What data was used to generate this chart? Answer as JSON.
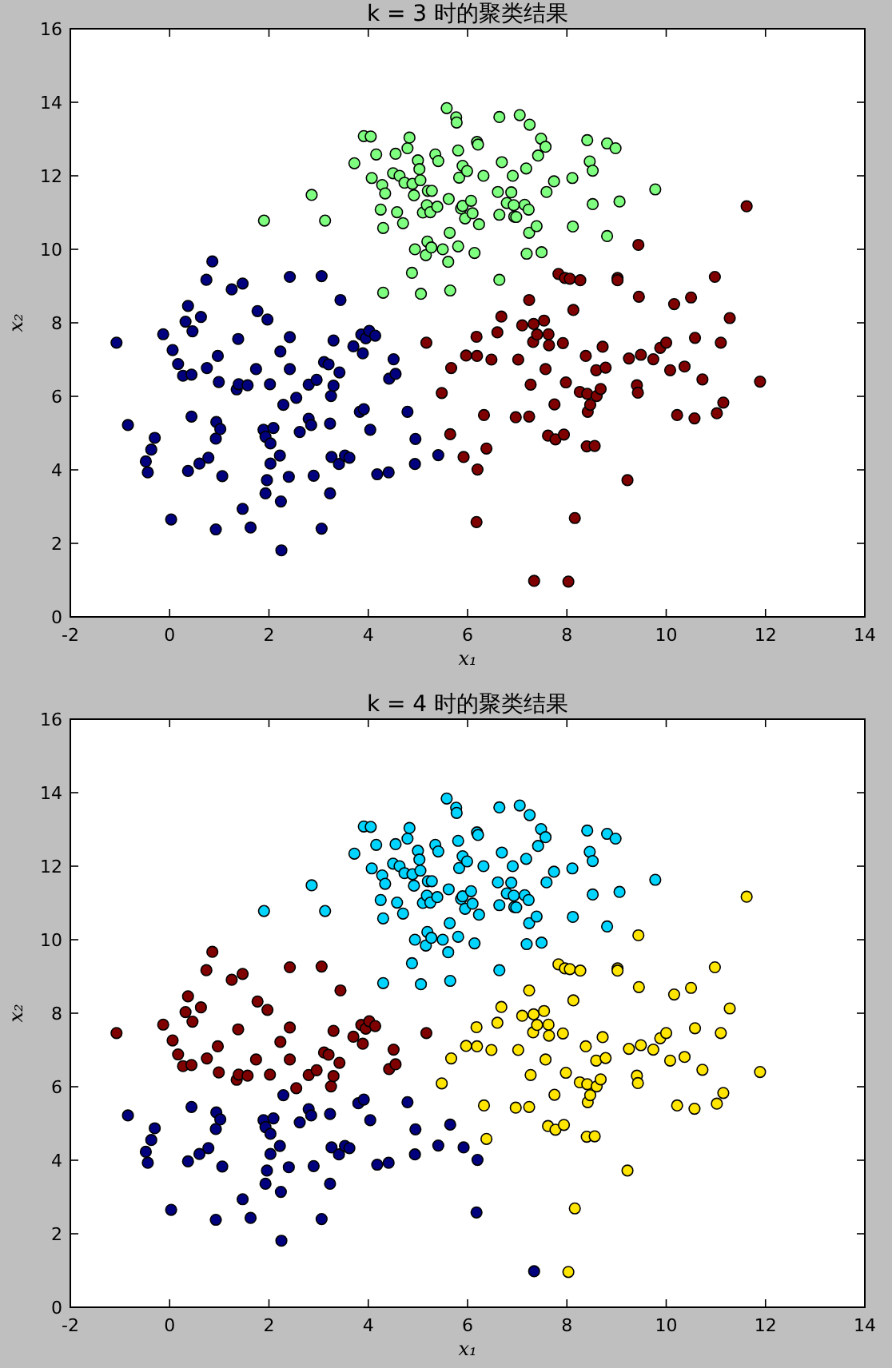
{
  "chart_data": [
    {
      "type": "scatter",
      "title": "k = 3 时的聚类结果",
      "xlabel": "x₁",
      "ylabel": "x₂",
      "xlim": [
        -2,
        14
      ],
      "ylim": [
        0,
        16
      ],
      "xticks": [
        -2,
        0,
        2,
        4,
        6,
        8,
        10,
        12,
        14
      ],
      "yticks": [
        0,
        2,
        4,
        6,
        8,
        10,
        12,
        14,
        16
      ],
      "marker": "circle",
      "series": [
        {
          "color": "#00007f",
          "x": [
            -1.07,
            -0.84,
            -0.48,
            -0.44,
            -0.37,
            -0.3,
            -0.13,
            0.03,
            0.06,
            0.17,
            0.27,
            0.32,
            0.37,
            0.44,
            0.46,
            0.44,
            0.37,
            0.6,
            0.63,
            0.75,
            0.74,
            0.86,
            0.78,
            0.93,
            0.93,
            0.94,
            0.97,
            0.99,
            1.02,
            1.06,
            1.25,
            1.35,
            1.38,
            1.39,
            1.47,
            1.47,
            1.57,
            1.63,
            1.74,
            1.77,
            1.89,
            1.93,
            1.97,
            2.02,
            2.03,
            2.03,
            1.96,
            1.93,
            2.09,
            2.22,
            2.23,
            2.24,
            2.25,
            2.29,
            2.4,
            2.42,
            2.42,
            2.42,
            2.55,
            2.62,
            2.8,
            2.8,
            2.85,
            2.9,
            2.96,
            3.06,
            3.06,
            3.11,
            3.2,
            3.23,
            3.23,
            3.25,
            3.26,
            3.3,
            3.3,
            3.41,
            3.42,
            3.44,
            3.53,
            3.62,
            3.7,
            3.83,
            3.91,
            3.86,
            3.89,
            3.95,
            4.02,
            4.14,
            4.04,
            4.18,
            4.41,
            4.42,
            4.51,
            4.55,
            4.79,
            4.95,
            4.94,
            5.41
          ],
          "values": [
            7.46,
            5.22,
            4.23,
            3.93,
            4.55,
            4.87,
            7.69,
            2.65,
            7.26,
            6.88,
            6.56,
            8.03,
            8.46,
            6.59,
            7.77,
            5.45,
            3.97,
            4.17,
            8.16,
            6.77,
            9.17,
            9.67,
            4.33,
            2.38,
            4.85,
            5.3,
            7.1,
            6.39,
            5.11,
            3.83,
            8.91,
            6.19,
            7.56,
            6.33,
            9.07,
            2.94,
            6.3,
            2.43,
            6.74,
            8.32,
            5.09,
            4.9,
            8.09,
            6.33,
            4.72,
            4.17,
            3.72,
            3.36,
            5.14,
            4.39,
            7.22,
            3.14,
            1.81,
            5.77,
            3.81,
            9.25,
            7.61,
            6.74,
            5.96,
            5.03,
            6.32,
            5.39,
            5.22,
            3.84,
            6.45,
            9.27,
            2.4,
            6.93,
            6.87,
            5.26,
            3.36,
            6.01,
            4.35,
            6.29,
            7.52,
            4.16,
            6.65,
            8.62,
            4.39,
            4.33,
            7.36,
            5.58,
            5.65,
            7.68,
            7.17,
            7.58,
            7.78,
            7.65,
            5.09,
            3.88,
            3.93,
            6.48,
            7.01,
            6.61,
            5.58,
            4.84,
            4.16,
            4.4
          ]
        },
        {
          "color": "#7fff7f",
          "x": [
            1.9,
            2.86,
            3.13,
            3.72,
            3.91,
            4.05,
            4.07,
            4.16,
            4.25,
            4.28,
            4.3,
            4.3,
            4.34,
            4.5,
            4.55,
            4.58,
            4.63,
            4.7,
            4.73,
            4.79,
            4.83,
            4.88,
            4.89,
            4.92,
            4.94,
            5.0,
            5.03,
            5.05,
            5.06,
            5.1,
            5.16,
            5.18,
            5.19,
            5.2,
            5.25,
            5.27,
            5.28,
            5.35,
            5.39,
            5.41,
            5.5,
            5.58,
            5.61,
            5.62,
            5.64,
            5.65,
            5.77,
            5.78,
            5.81,
            5.81,
            5.83,
            5.87,
            5.9,
            5.9,
            5.95,
            5.99,
            6.07,
            6.1,
            6.14,
            6.19,
            6.21,
            6.23,
            6.32,
            6.61,
            6.64,
            6.64,
            6.64,
            6.69,
            6.79,
            6.88,
            6.91,
            6.93,
            6.94,
            6.98,
            7.05,
            7.15,
            7.18,
            7.19,
            7.23,
            7.24,
            7.25,
            7.39,
            7.42,
            7.48,
            7.49,
            7.57,
            7.59,
            7.74,
            8.11,
            8.12,
            8.41,
            8.46,
            8.52,
            8.52,
            8.81,
            8.81,
            8.98,
            9.06,
            9.78
          ],
          "values": [
            10.78,
            11.48,
            10.78,
            12.34,
            13.08,
            13.07,
            11.94,
            12.58,
            11.08,
            11.75,
            10.58,
            8.82,
            11.52,
            12.07,
            12.6,
            11.01,
            12.0,
            10.71,
            11.81,
            12.75,
            13.04,
            9.36,
            11.78,
            11.47,
            10.0,
            12.42,
            12.18,
            11.88,
            8.79,
            11.0,
            9.84,
            11.2,
            10.21,
            11.59,
            11.01,
            10.05,
            11.59,
            12.58,
            11.16,
            12.4,
            10.0,
            13.84,
            9.66,
            11.37,
            10.45,
            8.88,
            13.59,
            13.45,
            12.69,
            10.08,
            11.95,
            11.11,
            12.27,
            11.18,
            10.84,
            12.13,
            11.32,
            10.98,
            9.9,
            12.92,
            12.85,
            10.68,
            12.0,
            11.56,
            10.94,
            9.17,
            13.6,
            12.37,
            11.26,
            11.55,
            12.0,
            11.2,
            10.89,
            10.88,
            13.65,
            11.21,
            12.2,
            9.88,
            11.08,
            10.45,
            13.39,
            10.63,
            12.55,
            13.01,
            9.92,
            12.79,
            11.56,
            11.85,
            11.94,
            10.62,
            12.97,
            12.39,
            12.14,
            11.23,
            12.88,
            10.36,
            12.75,
            11.3,
            11.63
          ]
        },
        {
          "color": "#7f0000",
          "x": [
            5.17,
            5.48,
            5.65,
            5.67,
            5.92,
            5.97,
            6.18,
            6.19,
            6.2,
            6.18,
            6.33,
            6.38,
            6.48,
            6.6,
            6.68,
            6.97,
            7.02,
            7.1,
            7.24,
            7.24,
            7.27,
            7.32,
            7.33,
            7.34,
            7.4,
            7.54,
            7.57,
            7.62,
            7.64,
            7.63,
            7.75,
            7.77,
            7.83,
            7.92,
            7.94,
            7.96,
            7.98,
            8.03,
            8.06,
            8.13,
            8.16,
            8.26,
            8.27,
            8.38,
            8.4,
            8.41,
            8.42,
            8.47,
            8.56,
            8.6,
            8.59,
            8.68,
            8.72,
            8.78,
            9.02,
            9.02,
            9.22,
            9.25,
            9.41,
            9.43,
            9.44,
            9.45,
            9.49,
            9.74,
            9.88,
            10.0,
            10.08,
            10.16,
            10.22,
            10.37,
            10.5,
            10.57,
            10.58,
            10.73,
            10.98,
            11.02,
            11.1,
            11.15,
            11.28,
            11.89,
            11.62
          ],
          "values": [
            7.46,
            6.09,
            4.97,
            6.77,
            4.35,
            7.11,
            7.62,
            7.1,
            4.01,
            2.58,
            5.49,
            4.58,
            7.0,
            7.74,
            8.17,
            5.43,
            7.0,
            7.93,
            8.62,
            5.45,
            6.32,
            7.48,
            7.97,
            0.98,
            7.68,
            8.06,
            6.74,
            4.93,
            7.39,
            7.69,
            5.78,
            4.83,
            9.33,
            7.45,
            4.96,
            9.22,
            6.38,
            0.96,
            9.2,
            8.35,
            2.69,
            6.12,
            9.16,
            7.1,
            4.64,
            6.07,
            5.58,
            5.77,
            4.65,
            6.01,
            6.71,
            6.2,
            7.35,
            6.78,
            9.22,
            9.16,
            3.72,
            7.03,
            6.3,
            6.1,
            10.12,
            8.71,
            7.13,
            7.01,
            7.32,
            7.46,
            6.71,
            8.51,
            5.49,
            6.81,
            8.69,
            5.4,
            7.59,
            6.46,
            9.25,
            5.54,
            7.46,
            5.83,
            8.13,
            6.4,
            11.17
          ]
        }
      ]
    },
    {
      "type": "scatter",
      "title": "k = 4 时的聚类结果",
      "xlabel": "x₁",
      "ylabel": "x₂",
      "xlim": [
        -2,
        14
      ],
      "ylim": [
        0,
        16
      ],
      "xticks": [
        -2,
        0,
        2,
        4,
        6,
        8,
        10,
        12,
        14
      ],
      "yticks": [
        0,
        2,
        4,
        6,
        8,
        10,
        12,
        14,
        16
      ],
      "marker": "circle",
      "series": [
        {
          "color": "#00007f",
          "x": [
            -0.84,
            -0.48,
            -0.44,
            -0.37,
            -0.3,
            0.03,
            0.44,
            0.37,
            0.6,
            0.78,
            0.93,
            0.93,
            0.94,
            1.02,
            1.06,
            1.47,
            1.63,
            1.89,
            1.93,
            2.03,
            2.03,
            1.96,
            1.93,
            2.09,
            2.22,
            2.24,
            2.25,
            2.29,
            2.4,
            2.62,
            2.8,
            2.85,
            2.9,
            3.06,
            3.23,
            3.23,
            3.26,
            3.41,
            3.53,
            3.62,
            3.8,
            3.91,
            4.04,
            4.18,
            4.41,
            4.79,
            4.95,
            4.94,
            5.41,
            5.65,
            5.92,
            6.2,
            6.18,
            7.34
          ],
          "values": [
            5.22,
            4.23,
            3.93,
            4.55,
            4.87,
            2.65,
            5.45,
            3.97,
            4.17,
            4.33,
            2.38,
            4.85,
            5.3,
            5.11,
            3.83,
            2.94,
            2.43,
            5.09,
            4.9,
            4.72,
            4.17,
            3.72,
            3.36,
            5.14,
            4.39,
            3.14,
            1.81,
            5.77,
            3.81,
            5.03,
            5.39,
            5.22,
            3.84,
            2.4,
            5.26,
            3.36,
            4.35,
            4.16,
            4.39,
            4.33,
            5.55,
            5.65,
            5.09,
            3.88,
            3.93,
            5.58,
            4.84,
            4.16,
            4.4,
            4.97,
            4.35,
            4.01,
            2.58,
            0.98
          ]
        },
        {
          "color": "#00d4ff",
          "x": [
            1.9,
            2.86,
            3.13,
            3.72,
            3.91,
            4.05,
            4.07,
            4.16,
            4.25,
            4.28,
            4.3,
            4.3,
            4.34,
            4.5,
            4.55,
            4.58,
            4.63,
            4.7,
            4.73,
            4.79,
            4.83,
            4.88,
            4.89,
            4.92,
            4.94,
            5.0,
            5.03,
            5.05,
            5.06,
            5.1,
            5.16,
            5.18,
            5.19,
            5.2,
            5.25,
            5.27,
            5.28,
            5.35,
            5.39,
            5.41,
            5.5,
            5.58,
            5.61,
            5.62,
            5.64,
            5.65,
            5.77,
            5.78,
            5.81,
            5.81,
            5.83,
            5.87,
            5.9,
            5.9,
            5.95,
            5.99,
            6.07,
            6.1,
            6.14,
            6.19,
            6.21,
            6.23,
            6.32,
            6.61,
            6.64,
            6.64,
            6.64,
            6.69,
            6.79,
            6.88,
            6.91,
            6.93,
            6.94,
            6.98,
            7.05,
            7.15,
            7.18,
            7.19,
            7.23,
            7.24,
            7.25,
            7.39,
            7.42,
            7.48,
            7.49,
            7.57,
            7.59,
            7.74,
            8.11,
            8.12,
            8.41,
            8.46,
            8.52,
            8.52,
            8.81,
            8.81,
            8.98,
            9.06,
            9.78
          ],
          "values": [
            10.78,
            11.48,
            10.78,
            12.34,
            13.08,
            13.07,
            11.94,
            12.58,
            11.08,
            11.75,
            10.58,
            8.82,
            11.52,
            12.07,
            12.6,
            11.01,
            12.0,
            10.71,
            11.81,
            12.75,
            13.04,
            9.36,
            11.78,
            11.47,
            10.0,
            12.42,
            12.18,
            11.88,
            8.79,
            11.0,
            9.84,
            11.2,
            10.21,
            11.59,
            11.01,
            10.05,
            11.59,
            12.58,
            11.16,
            12.4,
            10.0,
            13.84,
            9.66,
            11.37,
            10.45,
            8.88,
            13.59,
            13.45,
            12.69,
            10.08,
            11.95,
            11.11,
            12.27,
            11.18,
            10.84,
            12.13,
            11.32,
            10.98,
            9.9,
            12.92,
            12.85,
            10.68,
            12.0,
            11.56,
            10.94,
            9.17,
            13.6,
            12.37,
            11.26,
            11.55,
            12.0,
            11.2,
            10.89,
            10.88,
            13.65,
            11.21,
            12.2,
            9.88,
            11.08,
            10.45,
            13.39,
            10.63,
            12.55,
            13.01,
            9.92,
            12.79,
            11.56,
            11.85,
            11.94,
            10.62,
            12.97,
            12.39,
            12.14,
            11.23,
            12.88,
            10.36,
            12.75,
            11.3,
            11.63
          ]
        },
        {
          "color": "#ffe500",
          "x": [
            5.48,
            5.67,
            5.97,
            6.18,
            6.19,
            6.33,
            6.38,
            6.48,
            6.6,
            6.68,
            6.97,
            7.02,
            7.1,
            7.24,
            7.24,
            7.27,
            7.32,
            7.33,
            7.4,
            7.54,
            7.57,
            7.62,
            7.64,
            7.63,
            7.75,
            7.77,
            7.83,
            7.92,
            7.94,
            7.96,
            7.98,
            8.03,
            8.06,
            8.13,
            8.16,
            8.26,
            8.27,
            8.38,
            8.4,
            8.41,
            8.42,
            8.47,
            8.56,
            8.6,
            8.59,
            8.68,
            8.72,
            8.78,
            9.02,
            9.02,
            9.22,
            9.25,
            9.41,
            9.43,
            9.44,
            9.45,
            9.49,
            9.74,
            9.88,
            10.0,
            10.08,
            10.16,
            10.22,
            10.37,
            10.5,
            10.57,
            10.58,
            10.73,
            10.98,
            11.02,
            11.1,
            11.15,
            11.28,
            11.89,
            11.62
          ],
          "values": [
            6.09,
            6.77,
            7.11,
            7.62,
            7.1,
            5.49,
            4.58,
            7.0,
            7.74,
            8.17,
            5.43,
            7.0,
            7.93,
            8.62,
            5.45,
            6.32,
            7.48,
            7.97,
            7.68,
            8.06,
            6.74,
            4.93,
            7.39,
            7.69,
            5.78,
            4.83,
            9.33,
            7.45,
            4.96,
            9.22,
            6.38,
            0.96,
            9.2,
            8.35,
            2.69,
            6.12,
            9.16,
            7.1,
            4.64,
            6.07,
            5.58,
            5.77,
            4.65,
            6.01,
            6.71,
            6.2,
            7.35,
            6.78,
            9.22,
            9.16,
            3.72,
            7.03,
            6.3,
            6.1,
            10.12,
            8.71,
            7.13,
            7.01,
            7.32,
            7.46,
            6.71,
            8.51,
            5.49,
            6.81,
            8.69,
            5.4,
            7.59,
            6.46,
            9.25,
            5.54,
            7.46,
            5.83,
            8.13,
            6.4,
            11.17
          ]
        },
        {
          "color": "#7f0000",
          "x": [
            -1.07,
            -0.13,
            0.06,
            0.17,
            0.27,
            0.32,
            0.37,
            0.44,
            0.46,
            0.63,
            0.75,
            0.74,
            0.86,
            0.97,
            0.99,
            1.25,
            1.35,
            1.38,
            1.39,
            1.47,
            1.57,
            1.74,
            1.77,
            1.97,
            2.02,
            2.23,
            2.42,
            2.42,
            2.42,
            2.55,
            2.8,
            2.96,
            3.06,
            3.11,
            3.2,
            3.25,
            3.3,
            3.3,
            3.42,
            3.44,
            3.7,
            3.86,
            3.89,
            3.95,
            4.02,
            4.14,
            4.42,
            4.51,
            4.55,
            5.17
          ],
          "values": [
            7.46,
            7.69,
            7.26,
            6.88,
            6.56,
            8.03,
            8.46,
            6.59,
            7.77,
            8.16,
            6.77,
            9.17,
            9.67,
            7.1,
            6.39,
            8.91,
            6.19,
            7.56,
            6.33,
            9.07,
            6.3,
            6.74,
            8.32,
            8.09,
            6.33,
            7.22,
            9.25,
            7.61,
            6.74,
            5.96,
            6.32,
            6.45,
            9.27,
            6.93,
            6.87,
            6.01,
            6.29,
            7.52,
            6.65,
            8.62,
            7.36,
            7.68,
            7.17,
            7.58,
            7.78,
            7.65,
            6.48,
            7.01,
            6.61,
            7.46
          ]
        }
      ]
    }
  ]
}
